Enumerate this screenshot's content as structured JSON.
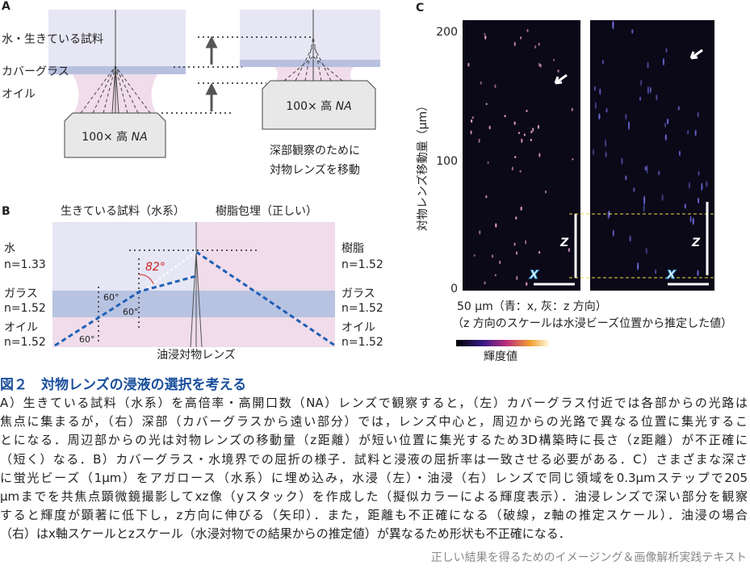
{
  "panel_a": {
    "label": "A",
    "layers": [
      "水・生きている試料",
      "カバーグラス",
      "オイル"
    ],
    "lens_left": {
      "text": "100× 高 ",
      "em": "NA"
    },
    "lens_right": {
      "text": "100× 高 ",
      "em": "NA"
    },
    "note": [
      "深部観察のために",
      "対物レンズを移動"
    ]
  },
  "panel_b": {
    "label": "B",
    "headers": [
      "生きている試料（水系）",
      "樹脂包埋（正しい）"
    ],
    "left": [
      [
        "水",
        "n=1.33"
      ],
      [
        "ガラス",
        "n=1.52"
      ],
      [
        "オイル",
        "n=1.52"
      ]
    ],
    "right": [
      [
        "樹脂",
        "n=1.52"
      ],
      [
        "ガラス",
        "n=1.52"
      ],
      [
        "オイル",
        "n=1.52"
      ]
    ],
    "angles": [
      "82°",
      "60°",
      "60°",
      "60°"
    ],
    "lens": "油浸対物レンズ"
  },
  "panel_c": {
    "label": "C",
    "yticks": [
      "200",
      "100",
      "0"
    ],
    "ylabel": "対物レンズ移動量（μm）",
    "images": [
      {
        "x": "X",
        "z": "Z"
      },
      {
        "x": "X",
        "z": "Z"
      }
    ],
    "scale_text": [
      "50 μm（青：x, 灰：z 方向）",
      "（z 方向のスケールは水浸ビーズ位置から推定した値）"
    ],
    "colorbar_label": "輝度値"
  },
  "caption": {
    "title": "図２　対物レンズの浸液の選択を考える",
    "lines": [
      "A）生きている試料（水系）を高倍率・高開口数（NA）レンズで観察すると，（左）カバーグラス付近では各部からの光路は",
      "焦点に集まるが，（右）深部（カバーグラスから遠い部分）では，レンズ中心と，周辺からの光路で異なる位置に集光するこ",
      "とになる．周辺部からの光は対物レンズの移動量（z距離）が短い位置に集光するため3D構築時に長さ（z距離）が不正確に",
      "（短く）なる．B）カバーグラス・水境界での屈折の様子．試料と浸液の屈折率は一致させる必要がある．C）さまざまな深さ",
      "に蛍光ビーズ（1μm）をアガロース（水系）に埋め込み，水浸（左）・油浸（右）レンズで同じ領域を0.3μmステップで205",
      "μmまでを共焦点顕微鏡撮影してxz像（yスタック）を作成した（擬似カラーによる輝度表示）．油浸レンズで深い部分を観察",
      "すると輝度が顕著に低下し，z方向に伸びる（矢印）．また，距離も不正確になる（破線，z軸の推定スケール）．油浸の場合",
      "（右）はx軸スケールとzスケール（水浸対物での結果からの推定値）が異なるため形状も不正確になる．"
    ]
  },
  "footer": "正しい結果を得るためのイメージング＆画像解析実践テキスト"
}
